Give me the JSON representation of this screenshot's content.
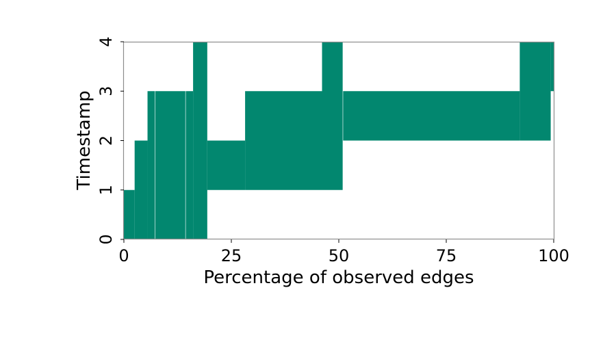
{
  "chart_data": {
    "type": "area",
    "xlabel": "Percentage of observed edges",
    "ylabel": "Timestamp",
    "xlim": [
      0,
      100
    ],
    "ylim": [
      0,
      4
    ],
    "xticks": [
      "0",
      "25",
      "50",
      "75",
      "100"
    ],
    "yticks": [
      "0",
      "1",
      "2",
      "3",
      "4"
    ],
    "grid": false,
    "fill_color": "#02876f",
    "segments": [
      {
        "x_start": 0.0,
        "x_end": 2.5,
        "y_low": 0,
        "y_high": 1
      },
      {
        "x_start": 2.5,
        "x_end": 5.5,
        "y_low": 0,
        "y_high": 2
      },
      {
        "x_start": 5.5,
        "x_end": 7.2,
        "y_low": 0,
        "y_high": 3
      },
      {
        "x_start": 7.3,
        "x_end": 14.3,
        "y_low": 0,
        "y_high": 3
      },
      {
        "x_start": 14.4,
        "x_end": 16.1,
        "y_low": 0,
        "y_high": 3
      },
      {
        "x_start": 16.1,
        "x_end": 19.4,
        "y_low": 0,
        "y_high": 4
      },
      {
        "x_start": 19.4,
        "x_end": 28.2,
        "y_low": 1,
        "y_high": 2
      },
      {
        "x_start": 28.2,
        "x_end": 46.1,
        "y_low": 1,
        "y_high": 3
      },
      {
        "x_start": 46.1,
        "x_end": 50.9,
        "y_low": 1,
        "y_high": 4
      },
      {
        "x_start": 51.0,
        "x_end": 92.1,
        "y_low": 2,
        "y_high": 3
      },
      {
        "x_start": 92.1,
        "x_end": 99.3,
        "y_low": 2,
        "y_high": 4
      },
      {
        "x_start": 99.3,
        "x_end": 100.0,
        "y_low": 3,
        "y_high": 4
      }
    ]
  }
}
